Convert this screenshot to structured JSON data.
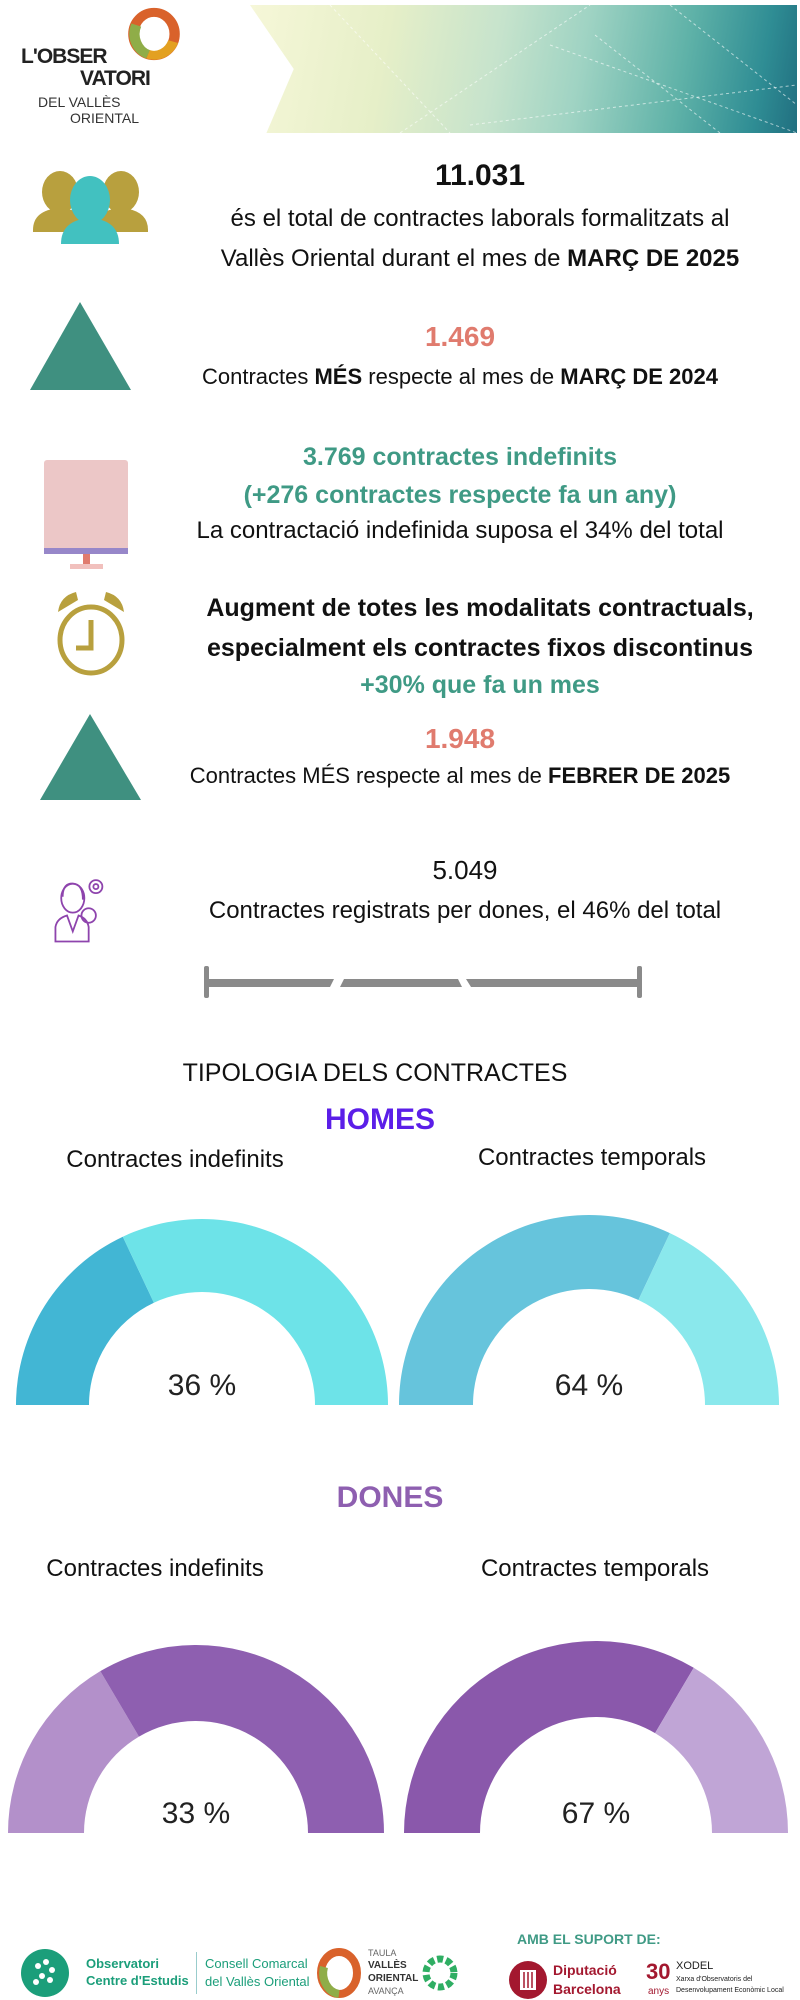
{
  "header": {
    "logo_text": [
      "L'OBSER",
      "VATORI",
      "DEL VALLÈS",
      "ORIENTAL"
    ]
  },
  "stats": {
    "total": {
      "value": "11.031",
      "line1": "és el total de contractes laborals formalitzats al",
      "line2_prefix": "Vallès Oriental durant el mes de ",
      "line2_bold": "MARÇ DE 2025"
    },
    "yoy": {
      "value": "1.469",
      "prefix": "Contractes ",
      "bold1": "MÉS",
      "middle": " respecte al mes de ",
      "bold2": "MARÇ DE 2024"
    },
    "indefinite": {
      "line1": "3.769 contractes indefinits",
      "line2": "(+276 contractes respecte fa un any)",
      "line3": "La contractació indefinida suposa el 34% del total"
    },
    "modalities": {
      "line1": "Augment de totes les modalitats contractuals,",
      "line2": "especialment els contractes fixos discontinus",
      "line3": "+30% que fa un mes"
    },
    "mom": {
      "value": "1.948",
      "prefix": "Contractes MÉS respecte al mes de ",
      "bold": "FEBRER DE 2025"
    },
    "women": {
      "value": "5.049",
      "text": "Contractes registrats per dones,  el 46% del total"
    }
  },
  "typology": {
    "title": "TIPOLOGIA DELS CONTRACTES",
    "men": {
      "heading": "HOMES",
      "heading_color": "#5b1ee8",
      "gauges": [
        {
          "label": "Contractes indefinits",
          "value": 36,
          "text": "36 %",
          "value_color": "#42b6d4",
          "rest_color": "#6de3e8",
          "value_side": "left"
        },
        {
          "label": "Contractes temporals",
          "value": 64,
          "text": "64 %",
          "value_color": "#66c4dc",
          "rest_color": "#8ae8ec",
          "value_side": "left"
        }
      ]
    },
    "women": {
      "heading": "DONES",
      "heading_color": "#8e5fb0",
      "gauges": [
        {
          "label": "Contractes indefinits",
          "value": 33,
          "text": "33 %",
          "value_color": "#b390ca",
          "rest_color": "#8e5fb0",
          "value_side": "left"
        },
        {
          "label": "Contractes temporals",
          "value": 67,
          "text": "67 %",
          "value_color": "#8a58ab",
          "rest_color": "#c0a5d6",
          "value_side": "left"
        }
      ]
    }
  },
  "footer": {
    "support_label": "AMB EL SUPORT DE:",
    "logos": {
      "observatori": [
        "Observatori",
        "Centre d'Estudis"
      ],
      "consell": [
        "Consell Comarcal",
        "del Vallès Oriental"
      ],
      "taula": [
        "TAULA",
        "VALLÈS",
        "ORIENTAL",
        "AVANÇA"
      ],
      "diputacio": [
        "Diputació",
        "Barcelona"
      ],
      "xodel": [
        "30",
        "anys",
        "XODEL",
        "Xarxa d'Observatoris del",
        "Desenvolupament Econòmic Local"
      ]
    }
  },
  "colors": {
    "green": "#3f9a85",
    "salmon": "#e07b6e",
    "gold": "#b8a03e",
    "teal": "#42c1c0",
    "purple": "#8e44ad"
  }
}
